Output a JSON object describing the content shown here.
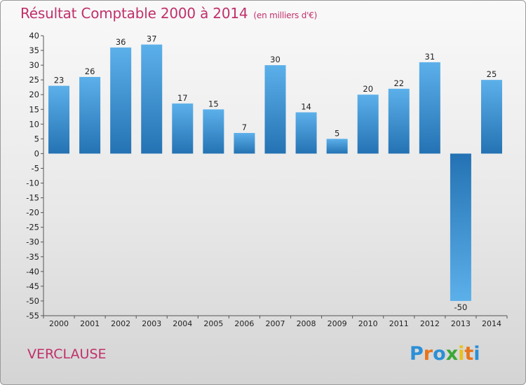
{
  "title": "Résultat Comptable 2000 à 2014",
  "unit_note": "(en milliers d'€)",
  "commune": "VERCLAUSE",
  "logo": {
    "letters": [
      "P",
      "r",
      "o",
      "x",
      "i",
      "t",
      "i"
    ],
    "colors": [
      "#2b8fd6",
      "#e8751a",
      "#2b8fd6",
      "#3aa835",
      "#e8c21a",
      "#e8751a",
      "#2b8fd6"
    ]
  },
  "colors": {
    "bar_dark": "#2472b3",
    "bar_light": "#5cb0ea",
    "axis": "#555555",
    "text": "#222222"
  },
  "chart_data": {
    "type": "bar",
    "title": "Résultat Comptable 2000 à 2014",
    "ylabel": "(en milliers d'€)",
    "xlabel": "",
    "categories": [
      "2000",
      "2001",
      "2002",
      "2003",
      "2004",
      "2005",
      "2006",
      "2007",
      "2008",
      "2009",
      "2010",
      "2011",
      "2012",
      "2013",
      "2014"
    ],
    "values": [
      23,
      26,
      36,
      37,
      17,
      15,
      7,
      30,
      14,
      5,
      20,
      22,
      31,
      -50,
      25
    ],
    "ylim": [
      -55,
      40
    ],
    "yticks": [
      40,
      35,
      30,
      25,
      20,
      15,
      10,
      5,
      0,
      -5,
      -10,
      -15,
      -20,
      -25,
      -30,
      -35,
      -40,
      -45,
      -50,
      -55
    ],
    "grid": false,
    "legend": "none"
  }
}
